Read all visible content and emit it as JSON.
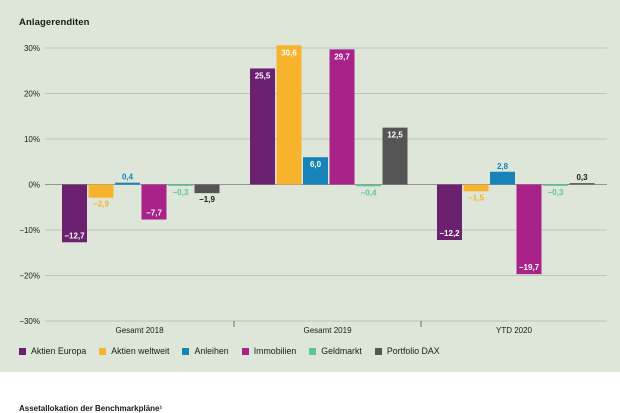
{
  "chart_data": {
    "type": "bar",
    "title": "Anlagerenditen",
    "categories": [
      "Gesamt 2018",
      "Gesamt 2019",
      "YTD 2020"
    ],
    "ylim": [
      -30,
      30
    ],
    "yticks": [
      30,
      20,
      10,
      0,
      -10,
      -20,
      -30
    ],
    "ytick_labels": [
      "30%",
      "20%",
      "10%",
      "0%",
      "−10%",
      "−20%",
      "−30%"
    ],
    "grid": true,
    "legend_position": "bottom",
    "series": [
      {
        "name": "Aktien Europa",
        "color": "#6b2170",
        "values": [
          -12.7,
          25.5,
          -12.2
        ],
        "labels": [
          "−12,7",
          "25,5",
          "−12,2"
        ]
      },
      {
        "name": "Aktien weltweit",
        "color": "#f7b32b",
        "values": [
          -2.9,
          30.6,
          -1.5
        ],
        "labels": [
          "−2,9",
          "30,6",
          "−1,5"
        ]
      },
      {
        "name": "Anleihen",
        "color": "#1684b8",
        "values": [
          0.4,
          6.0,
          2.8
        ],
        "labels": [
          "0,4",
          "6,0",
          "2,8"
        ]
      },
      {
        "name": "Immobilien",
        "color": "#a8228a",
        "values": [
          -7.7,
          29.7,
          -19.7
        ],
        "labels": [
          "−7,7",
          "29,7",
          "−19,7"
        ]
      },
      {
        "name": "Geldmarkt",
        "color": "#5ec4a0",
        "values": [
          -0.3,
          -0.4,
          -0.3
        ],
        "labels": [
          "−0,3",
          "−0,4",
          "−0,3"
        ]
      },
      {
        "name": "Portfolio DAX",
        "color": "#555555",
        "values": [
          -1.9,
          12.5,
          0.3
        ],
        "labels": [
          "−1,9",
          "12,5",
          "0,3"
        ]
      }
    ]
  },
  "footer": {
    "title": "Assetallokation der Benchmarkpläne¹"
  }
}
